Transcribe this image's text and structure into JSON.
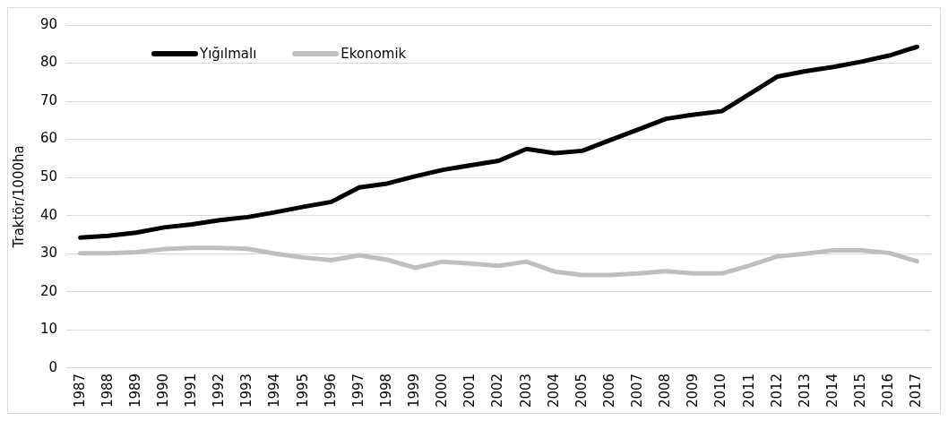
{
  "chart_data": {
    "type": "line",
    "ylabel": "Traktör/1000ha",
    "categories": [
      "1987",
      "1988",
      "1989",
      "1990",
      "1991",
      "1992",
      "1993",
      "1994",
      "1995",
      "1996",
      "1997",
      "1998",
      "1999",
      "2000",
      "2001",
      "2002",
      "2003",
      "2004",
      "2005",
      "2006",
      "2007",
      "2008",
      "2009",
      "2010",
      "2011",
      "2012",
      "2013",
      "2014",
      "2015",
      "2016",
      "2017"
    ],
    "series": [
      {
        "name": "Yığılmalı",
        "color": "#000000",
        "values": [
          34.2,
          34.7,
          35.5,
          36.9,
          37.7,
          38.8,
          39.6,
          40.9,
          42.3,
          43.6,
          47.4,
          48.4,
          50.3,
          52,
          53.2,
          54.4,
          57.5,
          56.4,
          57,
          59.8,
          62.6,
          65.4,
          66.5,
          67.4,
          71.9,
          76.5,
          77.9,
          79,
          80.4,
          82,
          84.3
        ]
      },
      {
        "name": "Ekonomik",
        "color": "#bfbfbf",
        "values": [
          30.1,
          30.1,
          30.4,
          31.2,
          31.5,
          31.5,
          31.3,
          30,
          29,
          28.3,
          29.6,
          28.4,
          26.3,
          27.9,
          27.4,
          26.8,
          27.9,
          25.3,
          24.4,
          24.4,
          24.8,
          25.4,
          24.8,
          24.8,
          26.9,
          29.3,
          30,
          30.9,
          30.9,
          30.2,
          28
        ]
      }
    ],
    "ylim": [
      0,
      90
    ],
    "yticks": [
      0,
      10,
      20,
      30,
      40,
      50,
      60,
      70,
      80,
      90
    ],
    "grid": "y",
    "legend": "top left",
    "marker": "none",
    "line_style": "solid"
  }
}
